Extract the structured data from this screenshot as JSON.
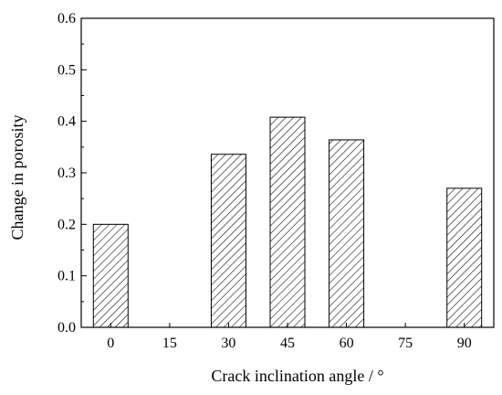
{
  "chart_data": {
    "type": "bar",
    "title": "",
    "xlabel": "Crack inclination angle / °",
    "ylabel": "Change in porosity",
    "categories": [
      "0",
      "15",
      "30",
      "45",
      "60",
      "75",
      "90"
    ],
    "values": [
      0.2,
      null,
      0.336,
      0.408,
      0.364,
      null,
      0.27
    ],
    "ylim": [
      0,
      0.6
    ],
    "yticks": [
      "0.0",
      "0.1",
      "0.2",
      "0.3",
      "0.4",
      "0.5",
      "0.6"
    ],
    "grid": false,
    "legend": "none",
    "bar_fill": "hatched",
    "colors": {
      "bar_outline": "#000000",
      "hatch": "#000000",
      "axis": "#000000"
    }
  }
}
